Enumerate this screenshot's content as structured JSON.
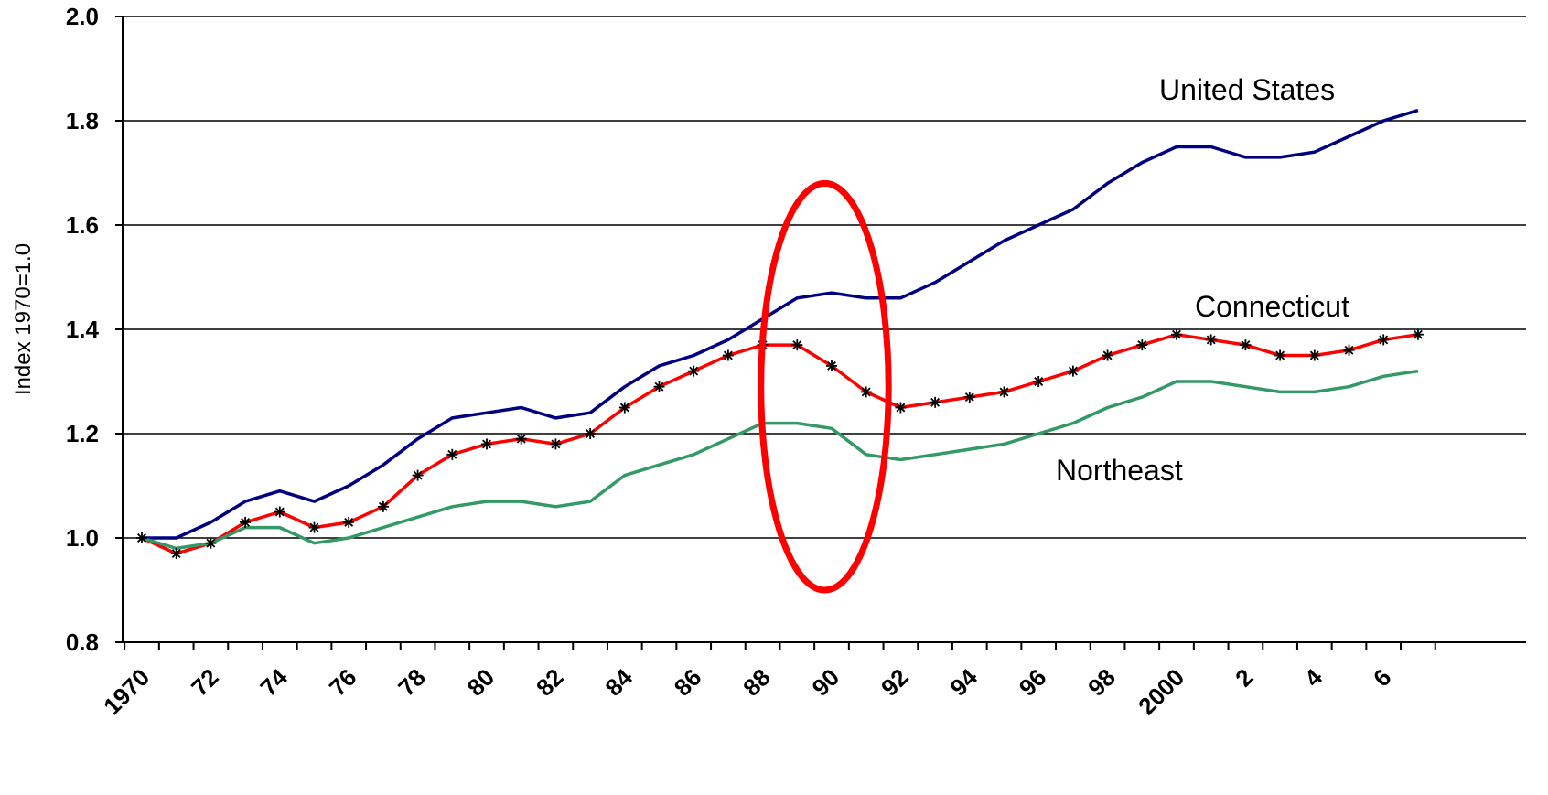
{
  "chart_data": {
    "type": "line",
    "title": "",
    "xlabel": "",
    "ylabel": "Index 1970=1.0",
    "ylim": [
      0.8,
      2.0
    ],
    "yticks": [
      "0.8",
      "1.0",
      "1.2",
      "1.4",
      "1.6",
      "1.8",
      "2.0"
    ],
    "grid": "horizontal",
    "x": [
      1970,
      1971,
      1972,
      1973,
      1974,
      1975,
      1976,
      1977,
      1978,
      1979,
      1980,
      1981,
      1982,
      1983,
      1984,
      1985,
      1986,
      1987,
      1988,
      1989,
      1990,
      1991,
      1992,
      1993,
      1994,
      1995,
      1996,
      1997,
      1998,
      1999,
      2000,
      2001,
      2002,
      2003,
      2004,
      2005,
      2006,
      2007
    ],
    "xtick_labels": [
      {
        "x": 1970,
        "label": "1970"
      },
      {
        "x": 1972,
        "label": "72"
      },
      {
        "x": 1974,
        "label": "74"
      },
      {
        "x": 1976,
        "label": "76"
      },
      {
        "x": 1978,
        "label": "78"
      },
      {
        "x": 1980,
        "label": "80"
      },
      {
        "x": 1982,
        "label": "82"
      },
      {
        "x": 1984,
        "label": "84"
      },
      {
        "x": 1986,
        "label": "86"
      },
      {
        "x": 1988,
        "label": "88"
      },
      {
        "x": 1990,
        "label": "90"
      },
      {
        "x": 1992,
        "label": "92"
      },
      {
        "x": 1994,
        "label": "94"
      },
      {
        "x": 1996,
        "label": "96"
      },
      {
        "x": 1998,
        "label": "98"
      },
      {
        "x": 2000,
        "label": "2000"
      },
      {
        "x": 2002,
        "label": "2"
      },
      {
        "x": 2004,
        "label": "4"
      },
      {
        "x": 2006,
        "label": "6"
      }
    ],
    "series": [
      {
        "name": "United States",
        "color": "#000080",
        "marker": "none",
        "values": [
          1.0,
          1.0,
          1.03,
          1.07,
          1.09,
          1.07,
          1.1,
          1.14,
          1.19,
          1.23,
          1.24,
          1.25,
          1.23,
          1.24,
          1.29,
          1.33,
          1.35,
          1.38,
          1.42,
          1.46,
          1.47,
          1.46,
          1.46,
          1.49,
          1.53,
          1.57,
          1.6,
          1.63,
          1.68,
          1.72,
          1.75,
          1.75,
          1.73,
          1.73,
          1.74,
          1.77,
          1.8,
          1.82
        ]
      },
      {
        "name": "Connecticut",
        "color": "#ff0000",
        "marker": "asterisk",
        "values": [
          1.0,
          0.97,
          0.99,
          1.03,
          1.05,
          1.02,
          1.03,
          1.06,
          1.12,
          1.16,
          1.18,
          1.19,
          1.18,
          1.2,
          1.25,
          1.29,
          1.32,
          1.35,
          1.37,
          1.37,
          1.33,
          1.28,
          1.25,
          1.26,
          1.27,
          1.28,
          1.3,
          1.32,
          1.35,
          1.37,
          1.39,
          1.38,
          1.37,
          1.35,
          1.35,
          1.36,
          1.38,
          1.39
        ]
      },
      {
        "name": "Northeast",
        "color": "#339966",
        "marker": "none",
        "values": [
          1.0,
          0.98,
          0.99,
          1.02,
          1.02,
          0.99,
          1.0,
          1.02,
          1.04,
          1.06,
          1.07,
          1.07,
          1.06,
          1.07,
          1.12,
          1.14,
          1.16,
          1.19,
          1.22,
          1.22,
          1.21,
          1.16,
          1.15,
          1.16,
          1.17,
          1.18,
          1.2,
          1.22,
          1.25,
          1.27,
          1.3,
          1.3,
          1.29,
          1.28,
          1.28,
          1.29,
          1.31,
          1.32
        ]
      }
    ],
    "annotations": [
      {
        "type": "ellipse",
        "color": "#ff0000",
        "center_x": 1989.8,
        "center_y": 1.29,
        "half_width_years": 1.85,
        "half_height": 0.39
      }
    ],
    "legend": "inline labels near line ends"
  }
}
